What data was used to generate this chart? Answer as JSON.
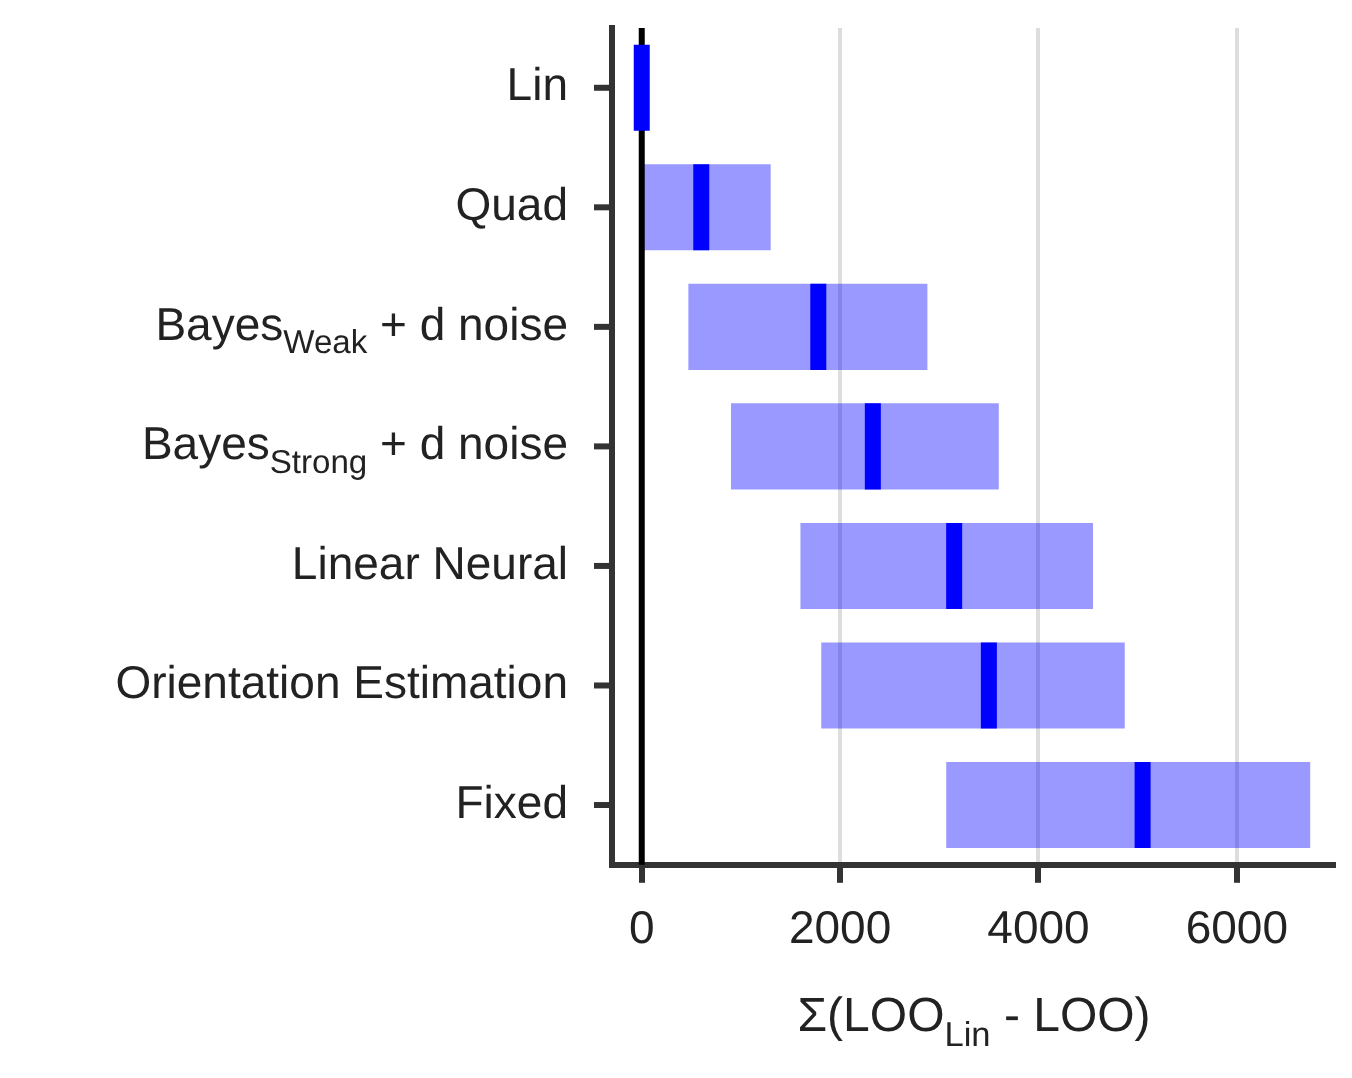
{
  "chart_data": {
    "type": "box",
    "orientation": "horizontal",
    "categories": [
      "Lin",
      "Quad",
      "Bayes$_{Weak}$ + d noise",
      "Bayes$_{Strong}$ + d noise",
      "Linear Neural",
      "Orientation Estimation",
      "Fixed"
    ],
    "series": [
      {
        "color": "#0000ff",
        "boxes": [
          {
            "low": 0,
            "q1": 0,
            "median": 0,
            "q3": 0,
            "high": 0
          },
          {
            "low": 20,
            "q1": 20,
            "median": 600,
            "q3": 1300,
            "high": 1300
          },
          {
            "low": 470,
            "q1": 470,
            "median": 1780,
            "q3": 2880,
            "high": 2880
          },
          {
            "low": 900,
            "q1": 900,
            "median": 2330,
            "q3": 3600,
            "high": 3600
          },
          {
            "low": 1600,
            "q1": 1600,
            "median": 3150,
            "q3": 4550,
            "high": 4550
          },
          {
            "low": 1810,
            "q1": 1810,
            "median": 3500,
            "q3": 4870,
            "high": 4870
          },
          {
            "low": 3070,
            "q1": 3070,
            "median": 5050,
            "q3": 6740,
            "high": 6740
          }
        ]
      }
    ],
    "xlim": [
      -300,
      7000
    ],
    "xticks": [
      0,
      2000,
      4000,
      6000
    ],
    "xlabel": "Σ(LOO$_{Lin}$ - LOO)",
    "grid": "x",
    "legend": false,
    "ref_lines": [
      {
        "axis": "x",
        "value": 0,
        "color": "#000000"
      }
    ]
  }
}
